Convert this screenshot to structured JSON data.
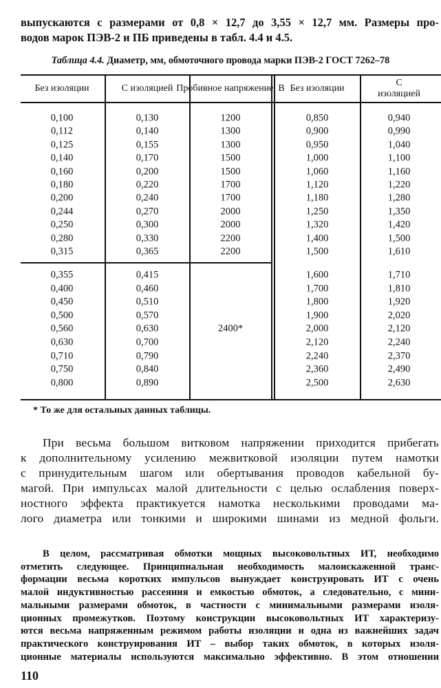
{
  "intro_lines": [
    "выпускаются с размерами от 0,8 × 12,7 до 3,55 × 12,7 мм. Размеры про-",
    "водов марок ПЭВ-2 и ПБ приведены в табл. 4.4 и 4.5."
  ],
  "table": {
    "caption_label": "Таблица 4.4.",
    "caption_text": "Диаметр, мм, обмоточного провода марки ПЭВ-2 ГОСТ 7262–78",
    "headers": [
      "Без изоляции",
      "С изоляцией",
      "Пробивное напряжение, В",
      "Без изоляции",
      "С изоляцией"
    ],
    "left_group1": [
      [
        "0,100",
        "0,130",
        "1200"
      ],
      [
        "0,112",
        "0,140",
        "1300"
      ],
      [
        "0,125",
        "0,155",
        "1300"
      ],
      [
        "0,140",
        "0,170",
        "1500"
      ],
      [
        "0,160",
        "0,200",
        "1500"
      ],
      [
        "0,180",
        "0,220",
        "1700"
      ],
      [
        "0,200",
        "0,240",
        "1700"
      ],
      [
        "0,244",
        "0,270",
        "2000"
      ],
      [
        "0,250",
        "0,300",
        "2000"
      ],
      [
        "0,280",
        "0,330",
        "2200"
      ],
      [
        "0,315",
        "0,365",
        "2200"
      ]
    ],
    "left_group2": [
      [
        "0,355",
        "0,415"
      ],
      [
        "0,400",
        "0,460"
      ],
      [
        "0,450",
        "0,510"
      ],
      [
        "0,500",
        "0,570"
      ],
      [
        "0,560",
        "0,630"
      ],
      [
        "0,630",
        "0,700"
      ],
      [
        "0,710",
        "0,790"
      ],
      [
        "0,750",
        "0,840"
      ],
      [
        "0,800",
        "0,890"
      ]
    ],
    "group2_voltage": "2400*",
    "right": [
      [
        "0,850",
        "0,940"
      ],
      [
        "0,900",
        "0,990"
      ],
      [
        "0,950",
        "1,040"
      ],
      [
        "1,000",
        "1,100"
      ],
      [
        "1,060",
        "1,160"
      ],
      [
        "1,120",
        "1,220"
      ],
      [
        "1,180",
        "1,280"
      ],
      [
        "1,250",
        "1,350"
      ],
      [
        "1,320",
        "1,420"
      ],
      [
        "1,400",
        "1,500"
      ],
      [
        "1,500",
        "1,610"
      ],
      [
        "1,600",
        "1,710"
      ],
      [
        "1,700",
        "1,810"
      ],
      [
        "1,800",
        "1,920"
      ],
      [
        "1,900",
        "2,020"
      ],
      [
        "2,000",
        "2,120"
      ],
      [
        "2,120",
        "2,240"
      ],
      [
        "2,240",
        "2,370"
      ],
      [
        "2,360",
        "2,490"
      ],
      [
        "2,500",
        "2,630"
      ]
    ],
    "footnote": "* То же для остальных данных таблицы."
  },
  "para2_lines": [
    "При весьма большом витковом напряжении приходится прибегать",
    "к дополнительному усилению межвитковой изоляции путем намотки",
    "с принудительным шагом или обертывания проводов кабельной бу-",
    "магой. При импульсах малой длительности с целью ослабления поверх-",
    "ностного эффекта практикуется намотка несколькими проводами ма-",
    "лого диаметра или тонкими и широкими шинами из медной фольги."
  ],
  "para3_lines": [
    "В целом, рассматривая обмотки мощных высоковольтных ИТ, необходимо",
    "отметить следующее. Принципиальная необходимость малоискаженной транс-",
    "формации весьма коротких импульсов вынуждает конструировать ИТ с очень",
    "малой индуктивностью рассеяния и емкостью обмоток, а следовательно, с мини-",
    "мальными размерами обмоток, в частности с минимальными размерами изоля-",
    "ционных промежутков. Поэтому конструкции высоковольтных ИТ характеризу-",
    "ются весьма напряженным режимом работы изоляции и одна из важнейших задач",
    "практического конструирования ИТ – выбор таких обмоток, в которых изоля-",
    "ционные материалы используются максимально эффективно. В этом отношении"
  ],
  "page_number": "110"
}
